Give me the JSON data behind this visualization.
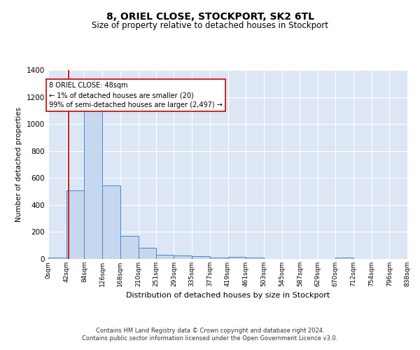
{
  "title1": "8, ORIEL CLOSE, STOCKPORT, SK2 6TL",
  "title2": "Size of property relative to detached houses in Stockport",
  "xlabel": "Distribution of detached houses by size in Stockport",
  "ylabel": "Number of detached properties",
  "footer1": "Contains HM Land Registry data © Crown copyright and database right 2024.",
  "footer2": "Contains public sector information licensed under the Open Government Licence v3.0.",
  "annotation_title": "8 ORIEL CLOSE: 48sqm",
  "annotation_line1": "← 1% of detached houses are smaller (20)",
  "annotation_line2": "99% of semi-detached houses are larger (2,497) →",
  "property_size": 48,
  "bar_left_edges": [
    0,
    42,
    84,
    126,
    168,
    210,
    251,
    293,
    335,
    377,
    419,
    461,
    503,
    545,
    587,
    629,
    670,
    712,
    754,
    796
  ],
  "bar_widths": [
    42,
    42,
    42,
    42,
    42,
    41,
    42,
    42,
    42,
    42,
    42,
    42,
    42,
    42,
    42,
    41,
    42,
    42,
    42,
    42
  ],
  "bar_heights": [
    10,
    510,
    1180,
    545,
    170,
    82,
    30,
    27,
    22,
    12,
    13,
    12,
    0,
    0,
    0,
    0,
    8,
    0,
    0,
    0
  ],
  "bar_color": "#c5d8f0",
  "bar_edge_color": "#4a86c8",
  "red_line_color": "#cc0000",
  "annotation_box_color": "#ffffff",
  "annotation_box_edge": "#cc0000",
  "background_color": "#ffffff",
  "plot_bg_color": "#dce6f5",
  "ylim": [
    0,
    1400
  ],
  "yticks": [
    0,
    200,
    400,
    600,
    800,
    1000,
    1200,
    1400
  ],
  "xtick_labels": [
    "0sqm",
    "42sqm",
    "84sqm",
    "126sqm",
    "168sqm",
    "210sqm",
    "251sqm",
    "293sqm",
    "335sqm",
    "377sqm",
    "419sqm",
    "461sqm",
    "503sqm",
    "545sqm",
    "587sqm",
    "629sqm",
    "670sqm",
    "712sqm",
    "754sqm",
    "796sqm",
    "838sqm"
  ]
}
